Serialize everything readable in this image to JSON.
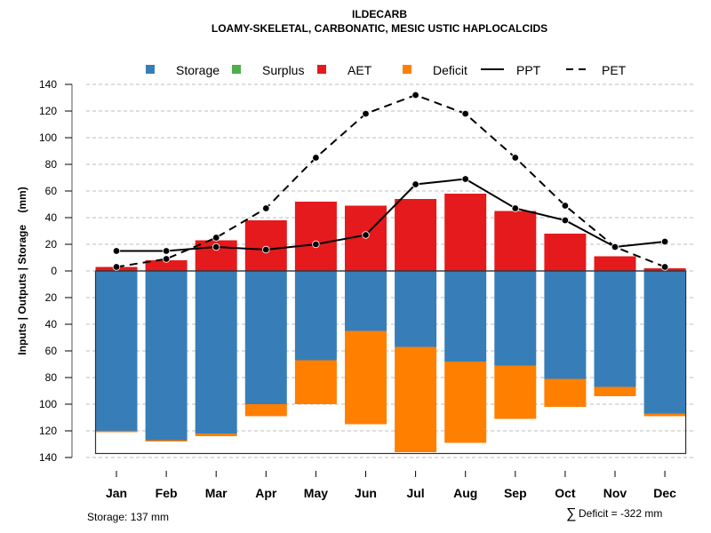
{
  "chart_data": {
    "type": "bar",
    "title": "ILDECARB",
    "subtitle": "LOAMY-SKELETAL, CARBONATIC, MESIC USTIC HAPLOCALCIDS",
    "xlabel": "",
    "ylabel": "Inputs | Outputs | Storage    (mm)",
    "categories": [
      "Jan",
      "Feb",
      "Mar",
      "Apr",
      "May",
      "Jun",
      "Jul",
      "Aug",
      "Sep",
      "Oct",
      "Nov",
      "Dec"
    ],
    "ylim": [
      -140,
      140
    ],
    "yticks": [
      140,
      120,
      100,
      80,
      60,
      40,
      20,
      0,
      -20,
      -40,
      -60,
      -80,
      -100,
      -120,
      -140
    ],
    "ytick_labels": [
      "140",
      "120",
      "100",
      "80",
      "60",
      "40",
      "20",
      "0",
      "20",
      "40",
      "60",
      "80",
      "100",
      "120",
      "140"
    ],
    "grid": true,
    "legend_position": "top",
    "storage_capacity": 137,
    "series": [
      {
        "name": "Storage",
        "kind": "bar-below",
        "color": "#377EB8",
        "values": [
          120,
          127,
          122,
          100,
          67,
          45,
          57,
          68,
          71,
          81,
          87,
          107
        ]
      },
      {
        "name": "Surplus",
        "kind": "bar-above",
        "color": "#4DAF4A",
        "values": [
          0,
          0,
          0,
          0,
          0,
          0,
          0,
          0,
          0,
          0,
          0,
          0
        ]
      },
      {
        "name": "AET",
        "kind": "bar-above",
        "color": "#E41A1C",
        "values": [
          3,
          8,
          23,
          38,
          52,
          49,
          54,
          58,
          45,
          28,
          11,
          2
        ]
      },
      {
        "name": "Deficit",
        "kind": "bar-below-stacked",
        "color": "#FF7F00",
        "values": [
          1,
          1,
          2,
          9,
          33,
          70,
          79,
          61,
          40,
          21,
          7,
          2
        ]
      },
      {
        "name": "PPT",
        "kind": "line",
        "color": "#000000",
        "dash": "solid",
        "values": [
          15,
          15,
          18,
          16,
          20,
          27,
          65,
          69,
          47,
          38,
          18,
          22
        ]
      },
      {
        "name": "PET",
        "kind": "line",
        "color": "#000000",
        "dash": "dashed",
        "values": [
          3,
          9,
          25,
          47,
          85,
          118,
          132,
          118,
          85,
          49,
          18,
          3
        ]
      }
    ],
    "legend": [
      {
        "label": "Storage",
        "type": "box",
        "color": "#377EB8"
      },
      {
        "label": "Surplus",
        "type": "box",
        "color": "#4DAF4A"
      },
      {
        "label": "AET",
        "type": "box",
        "color": "#E41A1C"
      },
      {
        "label": "Deficit",
        "type": "box",
        "color": "#FF7F00"
      },
      {
        "label": "PPT",
        "type": "line-solid",
        "color": "#000000"
      },
      {
        "label": "PET",
        "type": "line-dashed",
        "color": "#000000"
      }
    ],
    "annotations": {
      "storage_note": "Storage: 137 mm",
      "deficit_sum": "Deficit = -322 mm",
      "deficit_symbol": "∑"
    }
  }
}
